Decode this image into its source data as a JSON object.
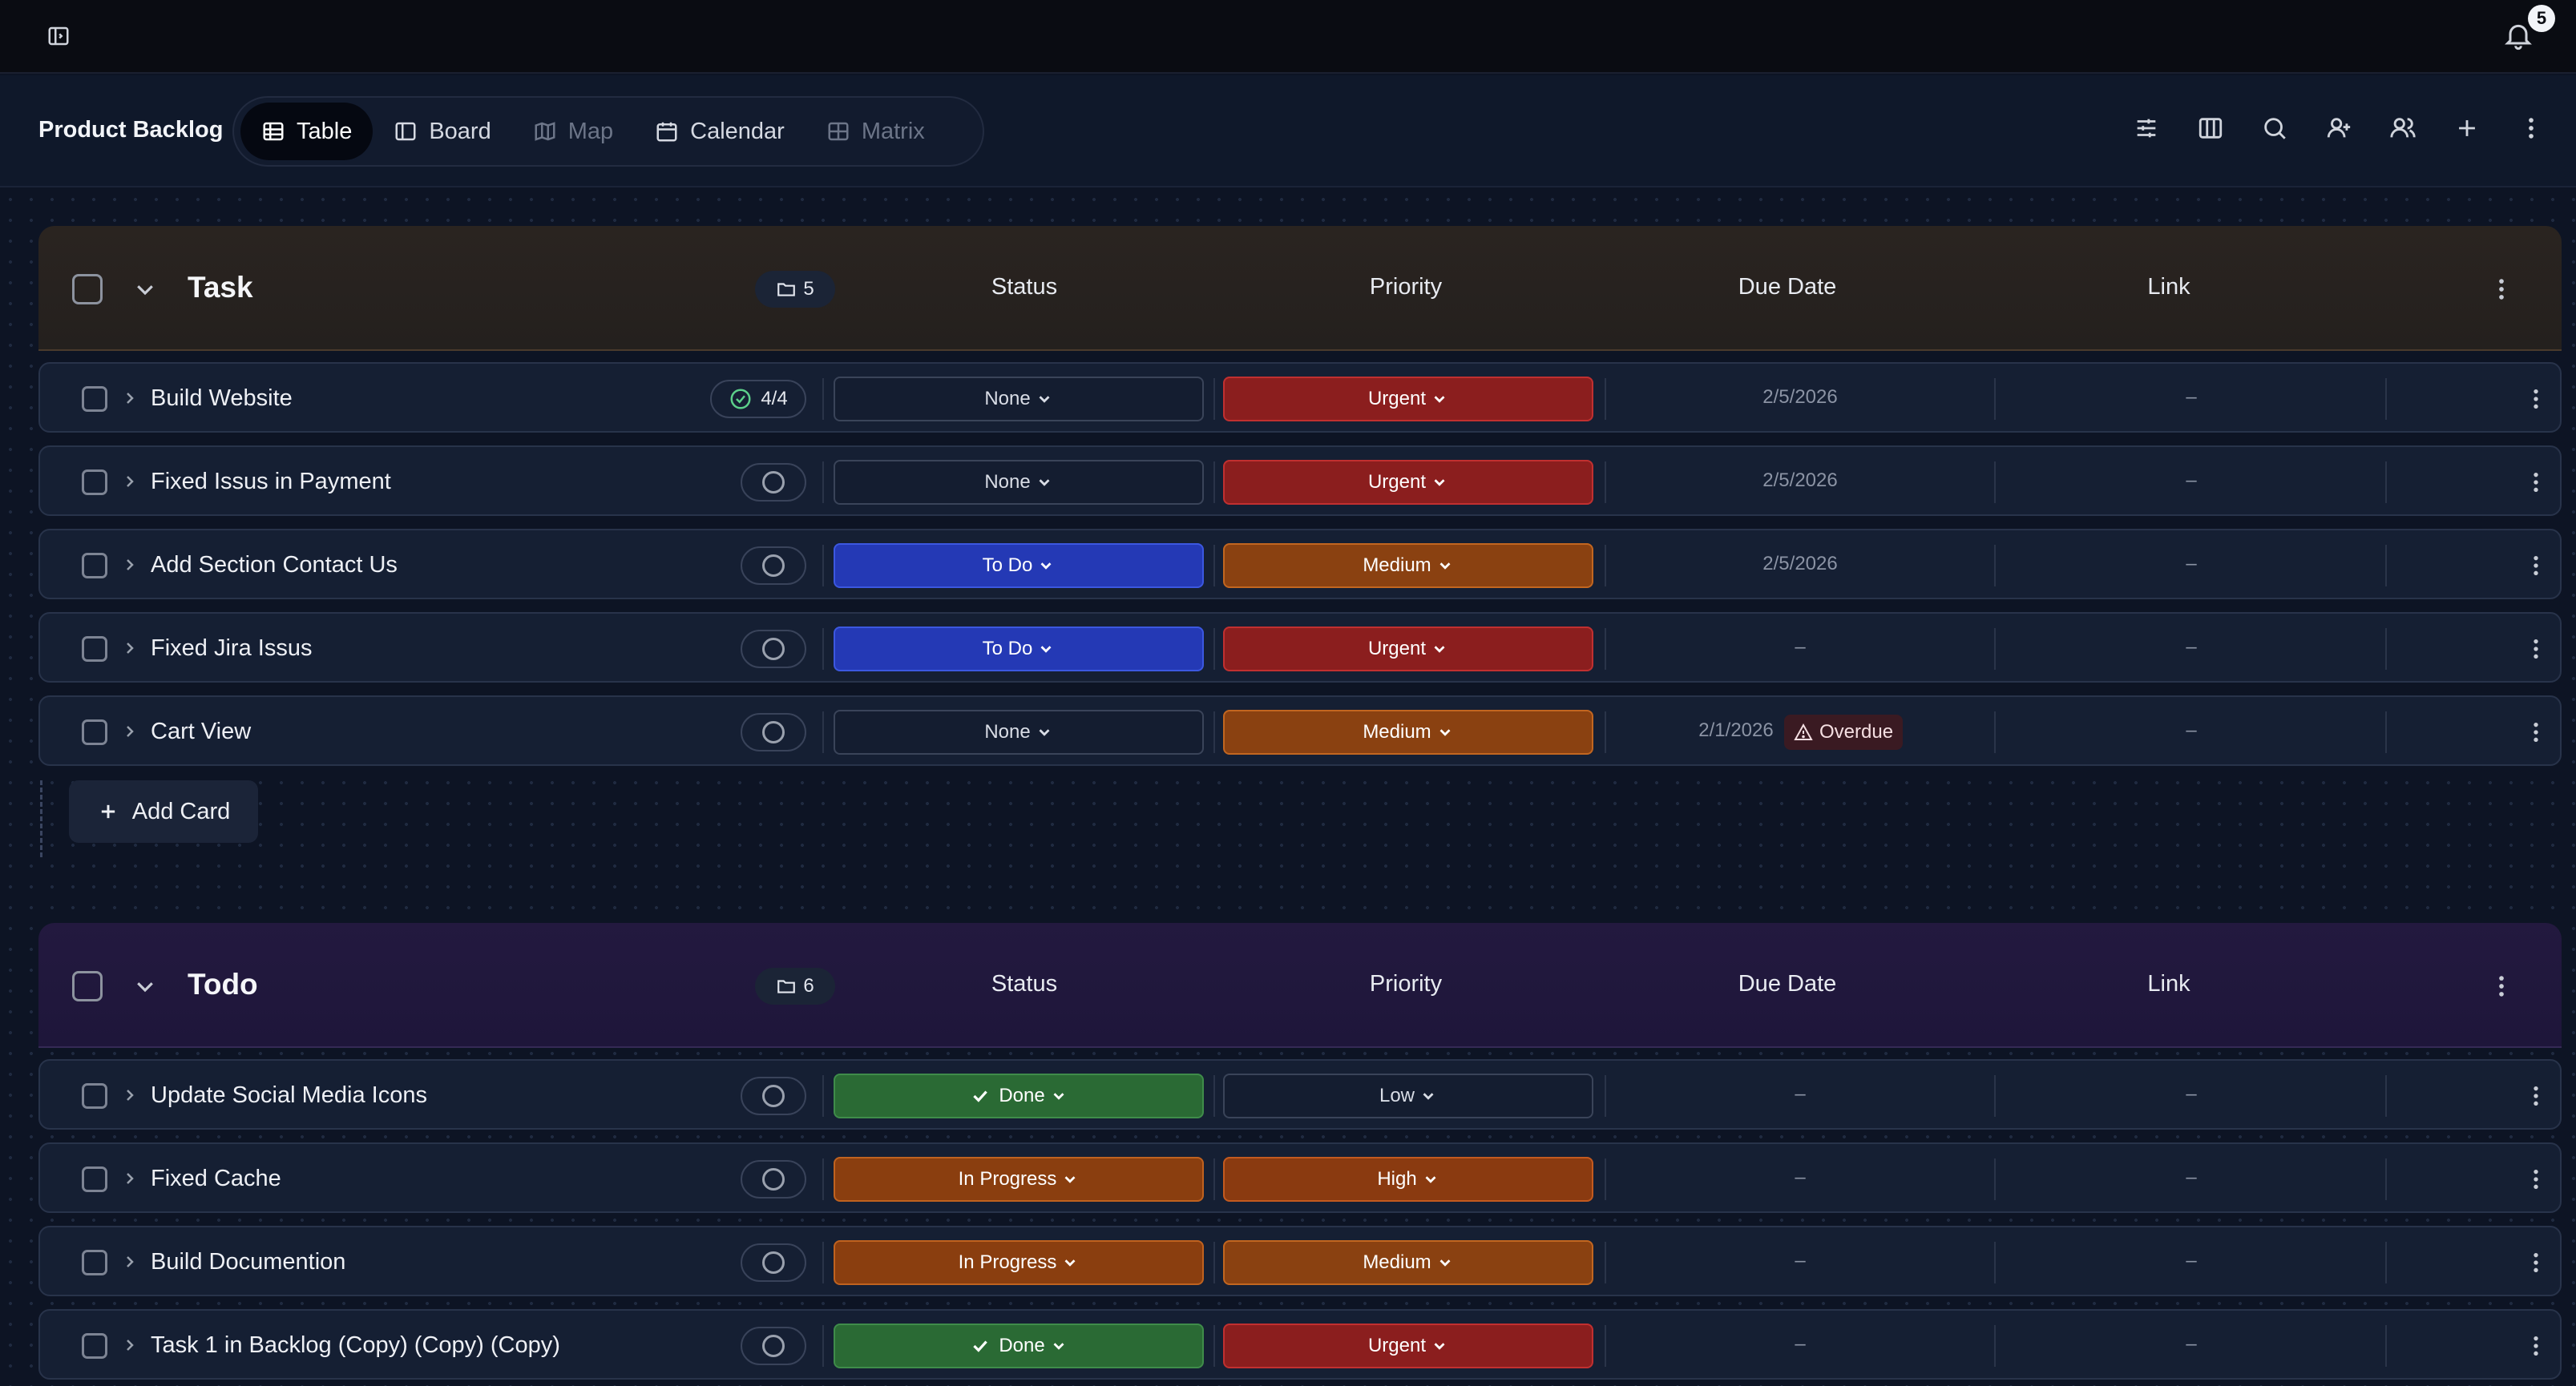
{
  "topbar": {
    "notifications_count": "5"
  },
  "header": {
    "title": "Product Backlog",
    "views": [
      {
        "label": "Table",
        "icon": "table-icon",
        "active": true
      },
      {
        "label": "Board",
        "icon": "board-icon"
      },
      {
        "label": "Map",
        "icon": "map-icon"
      },
      {
        "label": "Calendar",
        "icon": "calendar-icon"
      },
      {
        "label": "Matrix",
        "icon": "matrix-icon"
      }
    ],
    "tools": [
      "filter-icon",
      "columns-icon",
      "search-icon",
      "add-user-icon",
      "users-icon",
      "plus-icon",
      "more-vertical-icon"
    ]
  },
  "columns": {
    "status": "Status",
    "priority": "Priority",
    "due_date": "Due Date",
    "link": "Link"
  },
  "groups": [
    {
      "title": "Task",
      "count": "5",
      "add_card": "Add Card",
      "rows": [
        {
          "name": "Build Website",
          "subtasks": "4/4",
          "status": "None",
          "priority": "Urgent",
          "due": "2/5/2026",
          "link": "–"
        },
        {
          "name": "Fixed Issus in Payment",
          "status": "None",
          "priority": "Urgent",
          "due": "2/5/2026",
          "link": "–"
        },
        {
          "name": "Add Section Contact Us",
          "status": "To Do",
          "priority": "Medium",
          "due": "2/5/2026",
          "link": "–"
        },
        {
          "name": "Fixed Jira Issus",
          "status": "To Do",
          "priority": "Urgent",
          "due": "–",
          "link": "–"
        },
        {
          "name": "Cart View",
          "status": "None",
          "priority": "Medium",
          "due": "2/1/2026",
          "overdue": "Overdue",
          "link": "–"
        }
      ]
    },
    {
      "title": "Todo",
      "count": "6",
      "rows": [
        {
          "name": "Update Social Media Icons",
          "status": "Done",
          "priority": "Low",
          "due": "–",
          "link": "–"
        },
        {
          "name": "Fixed Cache",
          "status": "In Progress",
          "priority": "High",
          "due": "–",
          "link": "–"
        },
        {
          "name": "Build Documention",
          "status": "In Progress",
          "priority": "Medium",
          "due": "–",
          "link": "–"
        },
        {
          "name": "Task 1 in Backlog (Copy) (Copy) (Copy)",
          "status": "Done",
          "priority": "Urgent",
          "due": "–",
          "link": "–"
        }
      ]
    }
  ],
  "colors": {
    "status_todo": "#2439b5",
    "status_done": "#2a6a34",
    "status_in_progress": "#8a3e0f",
    "priority_urgent": "#8b1e1e",
    "priority_medium": "#8a4111",
    "priority_high": "#8a3a10"
  }
}
